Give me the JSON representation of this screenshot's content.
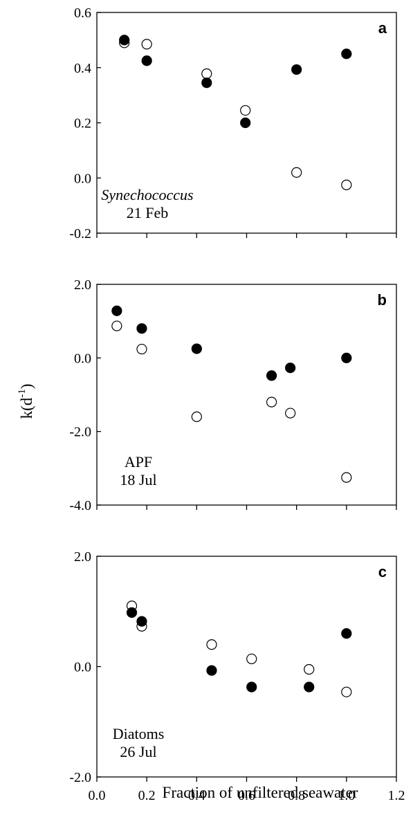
{
  "ylabel": {
    "main": "k(d",
    "sup": "-1",
    "close": ")"
  },
  "xlabel": "Fraction of unfiltered seawater",
  "chart_data": [
    {
      "type": "scatter",
      "panel_letter": "a",
      "annotation": [
        "Synechococcus",
        "21 Feb"
      ],
      "annotation_italic_first": true,
      "xlim": [
        0,
        1.2
      ],
      "ylim": [
        -0.2,
        0.6
      ],
      "yticks": [
        "-0.2",
        "0.0",
        "0.2",
        "0.4",
        "0.6"
      ],
      "ytick_values": [
        -0.2,
        0.0,
        0.2,
        0.4,
        0.6
      ],
      "series": [
        {
          "fill": "filled",
          "points": [
            [
              0.11,
              0.5
            ],
            [
              0.2,
              0.425
            ],
            [
              0.44,
              0.345
            ],
            [
              0.595,
              0.2
            ],
            [
              0.8,
              0.393
            ],
            [
              1.0,
              0.45
            ]
          ]
        },
        {
          "fill": "open",
          "points": [
            [
              0.11,
              0.49
            ],
            [
              0.2,
              0.485
            ],
            [
              0.44,
              0.378
            ],
            [
              0.595,
              0.245
            ],
            [
              0.8,
              0.02
            ],
            [
              1.0,
              -0.025
            ]
          ]
        }
      ]
    },
    {
      "type": "scatter",
      "panel_letter": "b",
      "annotation": [
        "APF",
        "18 Jul"
      ],
      "annotation_italic_first": false,
      "xlim": [
        0,
        1.2
      ],
      "ylim": [
        -4.0,
        2.0
      ],
      "yticks": [
        "-4.0",
        "-2.0",
        "0.0",
        "2.0"
      ],
      "ytick_values": [
        -4.0,
        -2.0,
        0.0,
        2.0
      ],
      "series": [
        {
          "fill": "filled",
          "points": [
            [
              0.08,
              1.28
            ],
            [
              0.18,
              0.8
            ],
            [
              0.4,
              0.25
            ],
            [
              0.7,
              -0.48
            ],
            [
              0.775,
              -0.27
            ],
            [
              1.0,
              0.0
            ]
          ]
        },
        {
          "fill": "open",
          "points": [
            [
              0.08,
              0.87
            ],
            [
              0.18,
              0.24
            ],
            [
              0.4,
              -1.6
            ],
            [
              0.7,
              -1.2
            ],
            [
              0.775,
              -1.5
            ],
            [
              1.0,
              -3.25
            ]
          ]
        }
      ]
    },
    {
      "type": "scatter",
      "panel_letter": "c",
      "annotation": [
        "Diatoms",
        "26 Jul"
      ],
      "annotation_italic_first": false,
      "xlim": [
        0,
        1.2
      ],
      "ylim": [
        -2.0,
        2.0
      ],
      "yticks": [
        "-2.0",
        "0.0",
        "2.0"
      ],
      "ytick_values": [
        -2.0,
        0.0,
        2.0
      ],
      "xticks": [
        "0.0",
        "0.2",
        "0.4",
        "0.6",
        "0.8",
        "1.0",
        "1.2"
      ],
      "xtick_values": [
        0.0,
        0.2,
        0.4,
        0.6,
        0.8,
        1.0,
        1.2
      ],
      "series": [
        {
          "fill": "filled",
          "points": [
            [
              0.14,
              0.98
            ],
            [
              0.18,
              0.82
            ],
            [
              0.46,
              -0.07
            ],
            [
              0.62,
              -0.37
            ],
            [
              0.85,
              -0.37
            ],
            [
              1.0,
              0.6
            ]
          ]
        },
        {
          "fill": "open",
          "points": [
            [
              0.14,
              1.1
            ],
            [
              0.18,
              0.73
            ],
            [
              0.46,
              0.4
            ],
            [
              0.62,
              0.14
            ],
            [
              0.85,
              -0.05
            ],
            [
              1.0,
              -0.46
            ]
          ]
        }
      ]
    }
  ]
}
